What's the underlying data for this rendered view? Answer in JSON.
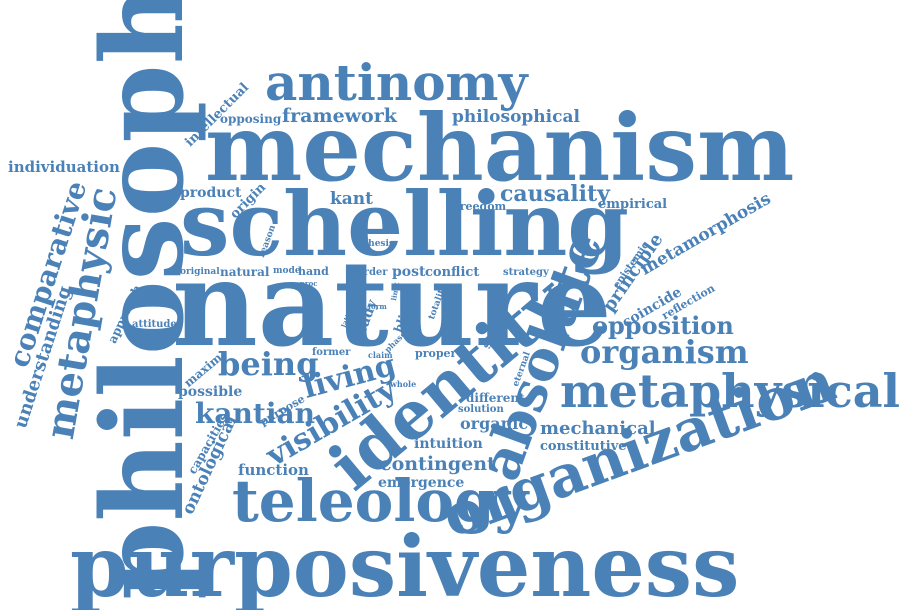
{
  "colors": {
    "word": "#4a81b7",
    "background": "#ffffff"
  },
  "words": {
    "philosophy": "philosophy",
    "mechanism": "mechanism",
    "nature": "nature",
    "schelling": "schelling",
    "purposiveness": "purposiveness",
    "antinomy": "antinomy",
    "organization": "organization",
    "teleology": "teleology",
    "identity": "identity",
    "absolute": "absolute",
    "metaphysical": "metaphysical",
    "organism": "organism",
    "opposition": "opposition",
    "metaphysic": "metaphysic",
    "comparative": "comparative",
    "understanding": "understanding",
    "individuation": "individuation",
    "being": "being",
    "living": "living",
    "kantian": "kantian",
    "visibility": "visibility",
    "framework": "framework",
    "philosophical": "philosophical",
    "causality": "causality",
    "kant": "kant",
    "product": "product",
    "origin": "origin",
    "intellectual": "intellectual",
    "opposing": "opposing",
    "freedom": "freedom",
    "empirical": "empirical",
    "metamorphosis": "metamorphosis",
    "principle": "principle",
    "epistemic": "epistemic",
    "coincide": "coincide",
    "reflection": "reflection",
    "approach": "approach",
    "attitude": "attitude",
    "natural": "natural",
    "original": "original",
    "mode": "mode",
    "hand": "hand",
    "proc": "proc",
    "order": "order",
    "post": "post",
    "conflict": "conflict",
    "strategy": "strategy",
    "reason": "reason",
    "thesis": "thesis",
    "study": "study",
    "blind": "blind",
    "limit": "limit",
    "totality": "totality",
    "support": "support",
    "latter": "latter",
    "form": "form",
    "claim": "claim",
    "phase": "phase",
    "former": "former",
    "proper": "proper",
    "whole": "whole",
    "eternal": "eternal",
    "different": "different",
    "solution": "solution",
    "organic": "organic",
    "mechanical": "mechanical",
    "constitutive": "constitutive",
    "intuition": "intuition",
    "contingent": "contingent",
    "emergence": "emergence",
    "possible": "possible",
    "maxim": "maxim",
    "purpose": "purpose",
    "capacities": "capacities",
    "ontological": "ontological",
    "function": "function"
  }
}
